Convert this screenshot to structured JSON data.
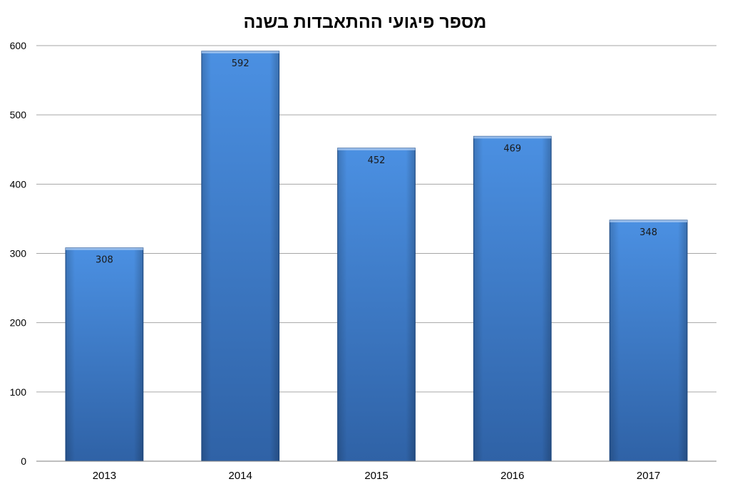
{
  "chart_data": {
    "type": "bar",
    "title": "מספר פיגועי ההתאבדות בשנה",
    "categories": [
      "2013",
      "2014",
      "2015",
      "2016",
      "2017"
    ],
    "values": [
      308,
      592,
      452,
      469,
      348
    ],
    "ylim": [
      0,
      600
    ],
    "yticks": [
      0,
      100,
      200,
      300,
      400,
      500,
      600
    ],
    "grid": true,
    "legend": "none",
    "data_labels": "inside-top",
    "colors": {
      "bar_light": "#4a8fe0",
      "bar_dark": "#2e66b0",
      "bar_edge": "#1f4e8c"
    }
  }
}
